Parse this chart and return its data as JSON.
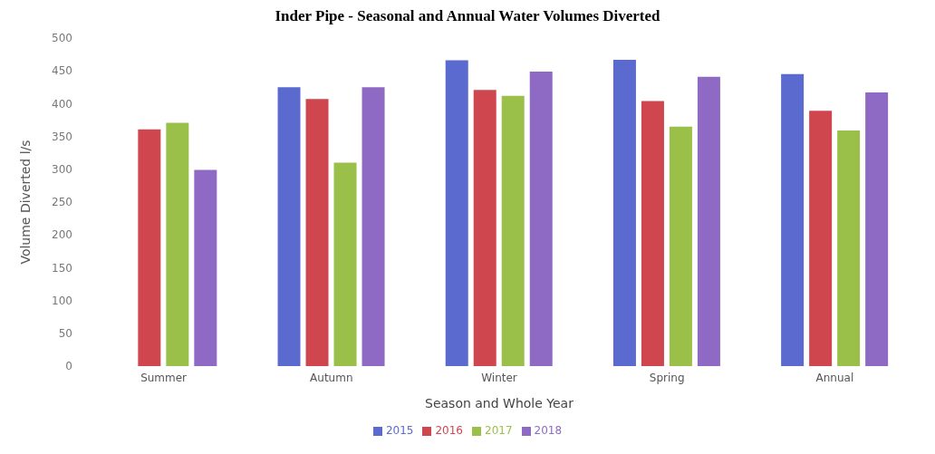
{
  "chart_data": {
    "type": "bar",
    "title": "Inder Pipe - Seasonal and Annual Water Volumes Diverted",
    "xlabel": "Season and Whole Year",
    "ylabel": "Volume Diverted l/s",
    "categories": [
      "Summer",
      "Autumn",
      "Winter",
      "Spring",
      "Annual"
    ],
    "series": [
      {
        "name": "2015",
        "color": "#5b6acf",
        "values": [
          null,
          425,
          466,
          467,
          445
        ]
      },
      {
        "name": "2016",
        "color": "#d0464e",
        "values": [
          361,
          407,
          421,
          404,
          389
        ]
      },
      {
        "name": "2017",
        "color": "#9bc04a",
        "values": [
          371,
          310,
          412,
          365,
          359
        ]
      },
      {
        "name": "2018",
        "color": "#8e6ac4",
        "values": [
          299,
          425,
          449,
          441,
          417
        ]
      }
    ],
    "ylim": [
      0,
      500
    ],
    "yticks": [
      0,
      50,
      100,
      150,
      200,
      250,
      300,
      350,
      400,
      450,
      500
    ],
    "grid": false,
    "legend": "bottom"
  }
}
